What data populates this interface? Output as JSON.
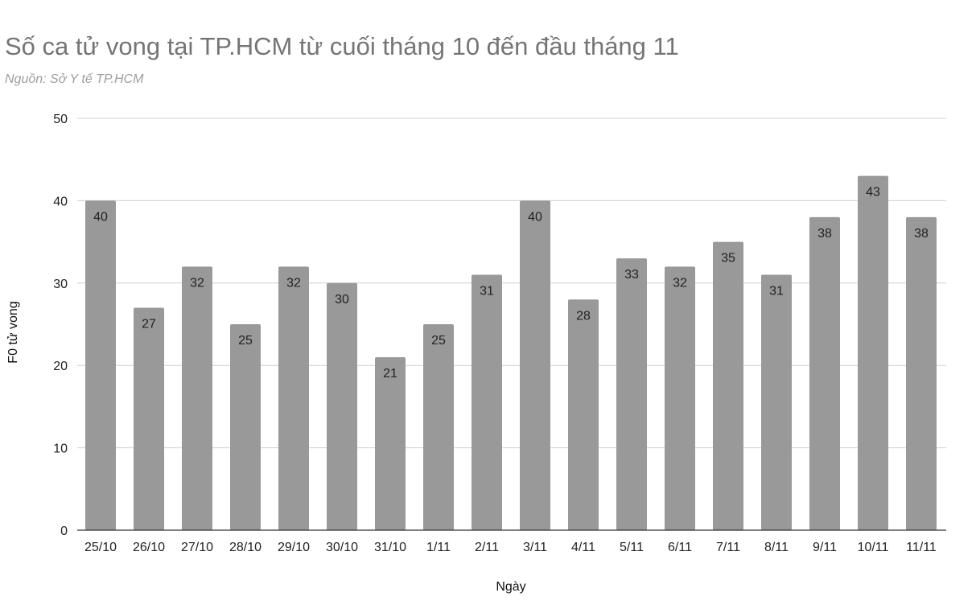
{
  "chart_data": {
    "type": "bar",
    "title": "Số ca tử vong tại TP.HCM từ cuối tháng 10 đến đầu tháng 11",
    "subtitle": "Nguồn: Sở Y tế TP.HCM",
    "xlabel": "Ngày",
    "ylabel": "F0 tử vong",
    "ylim": [
      0,
      50
    ],
    "yticks": [
      0,
      10,
      20,
      30,
      40,
      50
    ],
    "grid": true,
    "bar_color": "#999999",
    "categories": [
      "25/10",
      "26/10",
      "27/10",
      "28/10",
      "29/10",
      "30/10",
      "31/10",
      "1/11",
      "2/11",
      "3/11",
      "4/11",
      "5/11",
      "6/11",
      "7/11",
      "8/11",
      "9/11",
      "10/11",
      "11/11"
    ],
    "values": [
      40,
      27,
      32,
      25,
      32,
      30,
      21,
      25,
      31,
      40,
      28,
      33,
      32,
      35,
      31,
      38,
      43,
      38
    ]
  }
}
